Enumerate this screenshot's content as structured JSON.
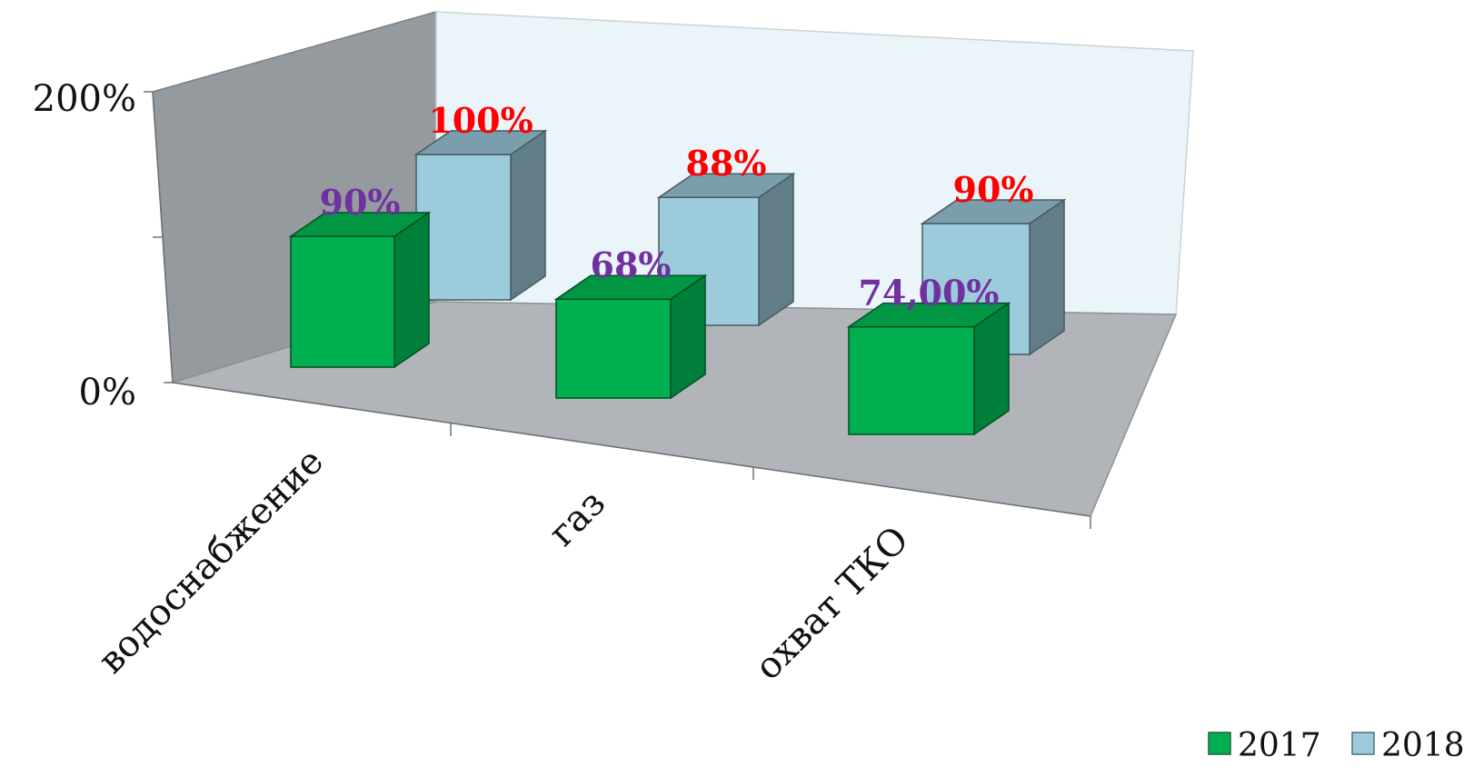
{
  "chart_data": {
    "type": "bar",
    "title": "",
    "xlabel": "",
    "ylabel": "",
    "ylim": [
      0,
      2
    ],
    "y_ticks": [
      "0%",
      "200%"
    ],
    "categories": [
      "водоснабжение",
      "газ",
      "охват ТКО"
    ],
    "series": [
      {
        "name": "2017",
        "values": [
          0.9,
          0.68,
          0.74
        ],
        "labels": [
          "90%",
          "68%",
          "74,00%"
        ],
        "color": "#00b050",
        "label_color": "#7030a0"
      },
      {
        "name": "2018",
        "values": [
          1.0,
          0.88,
          0.9
        ],
        "labels": [
          "100%",
          "88%",
          "90%"
        ],
        "color": "#9ccbdb",
        "label_color": "#ff0000"
      }
    ],
    "legend_position": "bottom-right",
    "grid": false,
    "style": "3d"
  }
}
